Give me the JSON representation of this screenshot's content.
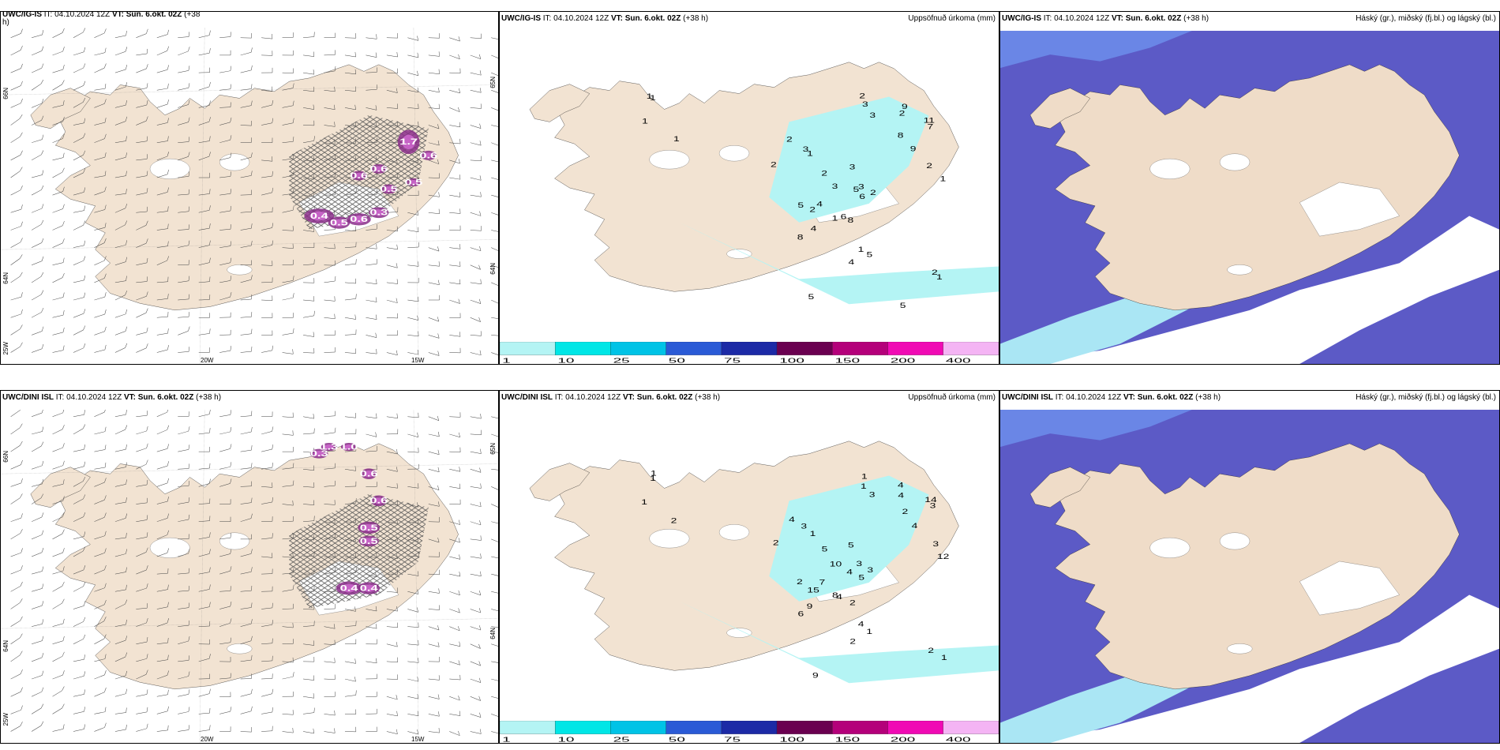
{
  "panels": [
    {
      "id": "wind-igis",
      "header_model": "UWC/IG-IS",
      "header_it": "IT: 04.10.2024 12Z",
      "header_vt": "VT: Sun. 6.okt. 02Z",
      "header_lead": "(+38",
      "header_wrap": "h)",
      "header_right": "",
      "type": "wind",
      "axes": {
        "lat_top": "66N",
        "lat_mid": "64N",
        "lat_bot": "25W",
        "lon_a": "20W",
        "lon_b": "15W",
        "lat_right_top": "65N",
        "lat_right_mid": "64N"
      },
      "cell_values": [
        "0.4",
        "0.5",
        "0.6",
        "0.3",
        "0.6",
        "0.6",
        "1.7",
        "0.6",
        "0.5",
        "0.5"
      ]
    },
    {
      "id": "precip-igis",
      "header_model": "UWC/IG-IS",
      "header_it": "IT: 04.10.2024 12Z",
      "header_vt": "VT: Sun. 6.okt. 02Z",
      "header_lead": "(+38 h)",
      "header_right": "Uppsöfnuð úrkoma (mm)",
      "type": "precip",
      "precip_labels": [
        "1",
        "1",
        "1",
        "1",
        "2",
        "3",
        "1",
        "2",
        "2",
        "3",
        "3",
        "9",
        "2",
        "11",
        "7",
        "8",
        "9",
        "2",
        "1",
        "3",
        "2",
        "3",
        "5",
        "6",
        "5",
        "2",
        "6",
        "8",
        "3",
        "2",
        "4",
        "1",
        "4",
        "8",
        "1",
        "5",
        "2",
        "1",
        "4",
        "5",
        "5"
      ]
    },
    {
      "id": "cloud-igis",
      "header_model": "UWC/IG-IS",
      "header_it": "IT: 04.10.2024 12Z",
      "header_vt": "VT: Sun. 6.okt. 02Z",
      "header_lead": "(+38 h)",
      "header_right": "Háský (gr.), miðský (fj.bl.) og lágský (bl.)",
      "type": "cloud"
    },
    {
      "id": "wind-dini",
      "header_model": "UWC/DINI ISL",
      "header_it": "IT: 04.10.2024 12Z",
      "header_vt": "VT: Sun. 6.okt. 02Z",
      "header_lead": "(+38 h)",
      "header_right": "",
      "type": "wind",
      "axes": {
        "lat_top": "66N",
        "lat_mid": "64N",
        "lat_bot": "25W",
        "lon_a": "20W",
        "lon_b": "15W",
        "lat_right_top": "65N",
        "lat_right_mid": "64N"
      },
      "cell_values": [
        "0.3",
        "1.3",
        "1.0",
        "0.6",
        "0.6",
        "0.5",
        "0.5",
        "0.4",
        "0.4"
      ]
    },
    {
      "id": "precip-dini",
      "header_model": "UWC/DINI ISL",
      "header_it": "IT: 04.10.2024 12Z",
      "header_vt": "VT: Sun. 6.okt. 02Z",
      "header_lead": "(+38 h)",
      "header_right": "Uppsöfnuð úrkoma (mm)",
      "type": "precip",
      "precip_labels": [
        "1",
        "1",
        "1",
        "2",
        "4",
        "3",
        "1",
        "2",
        "1",
        "1",
        "3",
        "4",
        "4",
        "14",
        "3",
        "2",
        "4",
        "3",
        "12",
        "5",
        "5",
        "10",
        "4",
        "5",
        "2",
        "15",
        "4",
        "2",
        "3",
        "3",
        "7",
        "8",
        "9",
        "6",
        "4",
        "1",
        "2",
        "1",
        "2",
        "9"
      ]
    },
    {
      "id": "cloud-dini",
      "header_model": "UWC/DINI ISL",
      "header_it": "IT: 04.10.2024 12Z",
      "header_vt": "VT: Sun. 6.okt. 02Z",
      "header_lead": "(+38 h)",
      "header_right": "Háský (gr.), miðský (fj.bl.) og lágský (bl.)",
      "type": "cloud"
    }
  ],
  "legend": {
    "ticks": [
      "1",
      "10",
      "25",
      "50",
      "75",
      "100",
      "150",
      "200",
      "400"
    ],
    "colors": [
      "#b4f4f4",
      "#00e6e6",
      "#00c3e6",
      "#2a5ad6",
      "#1c2aa6",
      "#6a0050",
      "#b4007a",
      "#f00ab4",
      "#f4b4f4"
    ]
  },
  "colors": {
    "land": "#f2e3d2",
    "land_dark": "#efdcc8",
    "sea": "#ffffff",
    "precip_light": "#b4f4f4",
    "cloud_high": "#5c5ac6",
    "cloud_mid": "#6a86e6",
    "cloud_low": "#aae6f4",
    "precip_cell": "#8a2e8a",
    "precip_cell_light": "#d26ad2"
  }
}
